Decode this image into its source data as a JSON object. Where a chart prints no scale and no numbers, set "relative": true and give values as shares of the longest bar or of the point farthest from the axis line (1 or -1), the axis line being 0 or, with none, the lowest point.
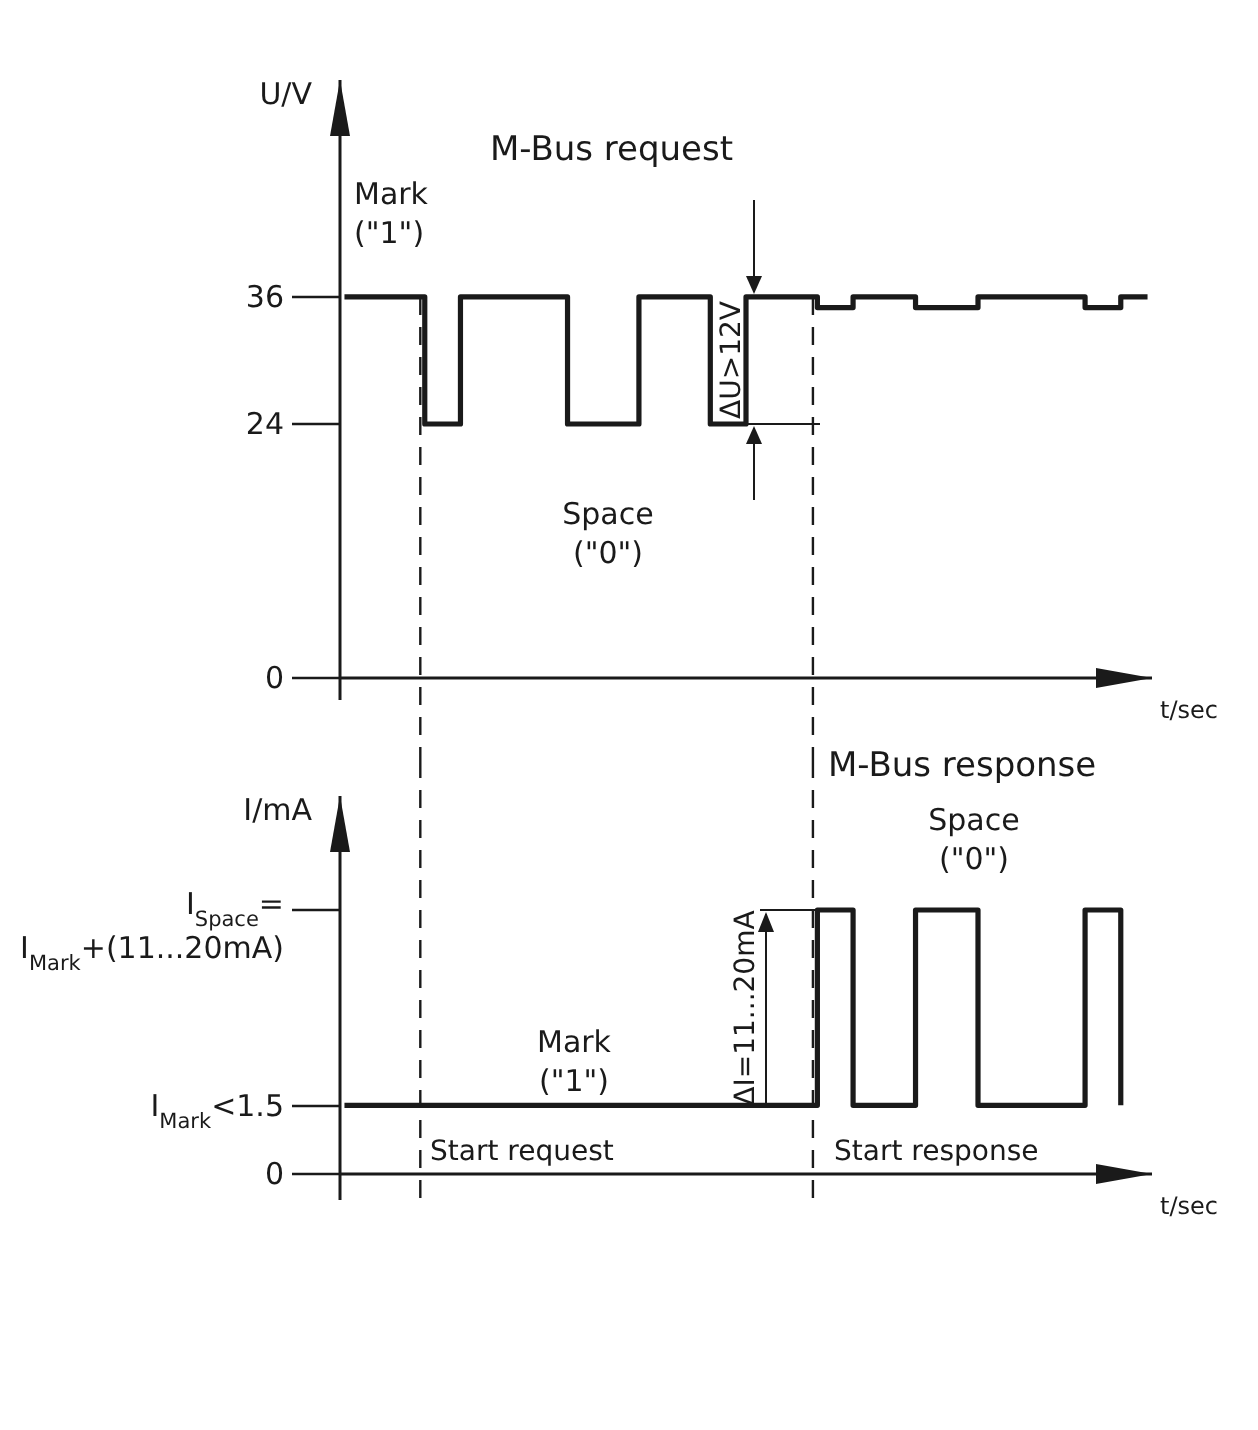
{
  "chart_data": [
    {
      "type": "step",
      "ylabel": "U/V",
      "xlabel": "t/sec",
      "categories": [
        null,
        null,
        null,
        null,
        null,
        null,
        null,
        null,
        null,
        null,
        null,
        null,
        null,
        null,
        null,
        null,
        null,
        null,
        null,
        null,
        null,
        null,
        null,
        null,
        null,
        null,
        null,
        null,
        null,
        null,
        null,
        null,
        null,
        null,
        null,
        null,
        null,
        null,
        null,
        null,
        null,
        null,
        null,
        null,
        null,
        null,
        null,
        null,
        null,
        null,
        null,
        null,
        null,
        null,
        null,
        null,
        null,
        null,
        null,
        null,
        null,
        null,
        null,
        null,
        null,
        null,
        null,
        null,
        null,
        null,
        null,
        null,
        null,
        null,
        null,
        null,
        null,
        null,
        null,
        null,
        null,
        null,
        null,
        null,
        null,
        null,
        null,
        null,
        null,
        null,
        null
      ],
      "series": [
        {
          "color": "#1a1a1a",
          "values": [
            36,
            36,
            36,
            36,
            36,
            36,
            36,
            36,
            36,
            24,
            24,
            24,
            24,
            36,
            36,
            36,
            36,
            36,
            36,
            36,
            36,
            36,
            36,
            36,
            36,
            24,
            24,
            24,
            24,
            24,
            24,
            24,
            24,
            36,
            36,
            36,
            36,
            36,
            36,
            36,
            36,
            24,
            24,
            24,
            24,
            36,
            36,
            36,
            36,
            36,
            36,
            36,
            36,
            35,
            35,
            35,
            35,
            36,
            36,
            36,
            36,
            36,
            36,
            36,
            35,
            35,
            35,
            35,
            35,
            35,
            35,
            36,
            36,
            36,
            36,
            36,
            36,
            36,
            36,
            36,
            36,
            36,
            36,
            35,
            35,
            35,
            35,
            36,
            36,
            36,
            36
          ]
        }
      ],
      "ylim": [
        0,
        56.5
      ],
      "yticks": [
        0,
        24,
        36
      ],
      "tick_labels": "y",
      "annotations": [
        "M-Bus request",
        "Mark (\"1\")",
        "Space (\"0\")",
        "ΔU>12V"
      ]
    },
    {
      "type": "step",
      "ylabel": "I/mA",
      "xlabel": "t/sec",
      "relative": true,
      "categories": [
        null,
        null,
        null,
        null,
        null,
        null,
        null,
        null,
        null,
        null,
        null,
        null,
        null,
        null,
        null,
        null,
        null,
        null,
        null,
        null,
        null,
        null,
        null,
        null,
        null,
        null,
        null,
        null,
        null,
        null,
        null,
        null,
        null,
        null,
        null,
        null,
        null,
        null,
        null,
        null,
        null,
        null,
        null,
        null,
        null,
        null,
        null,
        null,
        null,
        null,
        null,
        null,
        null,
        null,
        null,
        null,
        null,
        null,
        null,
        null,
        null,
        null,
        null,
        null,
        null,
        null,
        null,
        null,
        null,
        null,
        null,
        null,
        null,
        null,
        null,
        null,
        null,
        null,
        null,
        null,
        null,
        null,
        null,
        null,
        null,
        null,
        null,
        null,
        null,
        null,
        null
      ],
      "series": [
        {
          "color": "#1a1a1a",
          "values": [
            0.26,
            0.26,
            0.26,
            0.26,
            0.26,
            0.26,
            0.26,
            0.26,
            0.26,
            0.26,
            0.26,
            0.26,
            0.26,
            0.26,
            0.26,
            0.26,
            0.26,
            0.26,
            0.26,
            0.26,
            0.26,
            0.26,
            0.26,
            0.26,
            0.26,
            0.26,
            0.26,
            0.26,
            0.26,
            0.26,
            0.26,
            0.26,
            0.26,
            0.26,
            0.26,
            0.26,
            0.26,
            0.26,
            0.26,
            0.26,
            0.26,
            0.26,
            0.26,
            0.26,
            0.26,
            0.26,
            0.26,
            0.26,
            0.26,
            0.26,
            0.26,
            0.26,
            0.26,
            1,
            1,
            1,
            1,
            0.26,
            0.26,
            0.26,
            0.26,
            0.26,
            0.26,
            0.26,
            1,
            1,
            1,
            1,
            1,
            1,
            1,
            0.26,
            0.26,
            0.26,
            0.26,
            0.26,
            0.26,
            0.26,
            0.26,
            0.26,
            0.26,
            0.26,
            0.26,
            1,
            1,
            1,
            1,
            0.26,
            null,
            null,
            null
          ]
        }
      ],
      "tick_labels": false,
      "annotations": [
        "M-Bus response",
        "Space (\"0\")",
        "Mark (\"1\")",
        "ΔI=11...20mA",
        "Start request",
        "Start response",
        "0",
        "I$_{Mark}$<1.5",
        "I$_{Space}$= I$_{Mark}$+(11...20mA)"
      ]
    }
  ]
}
